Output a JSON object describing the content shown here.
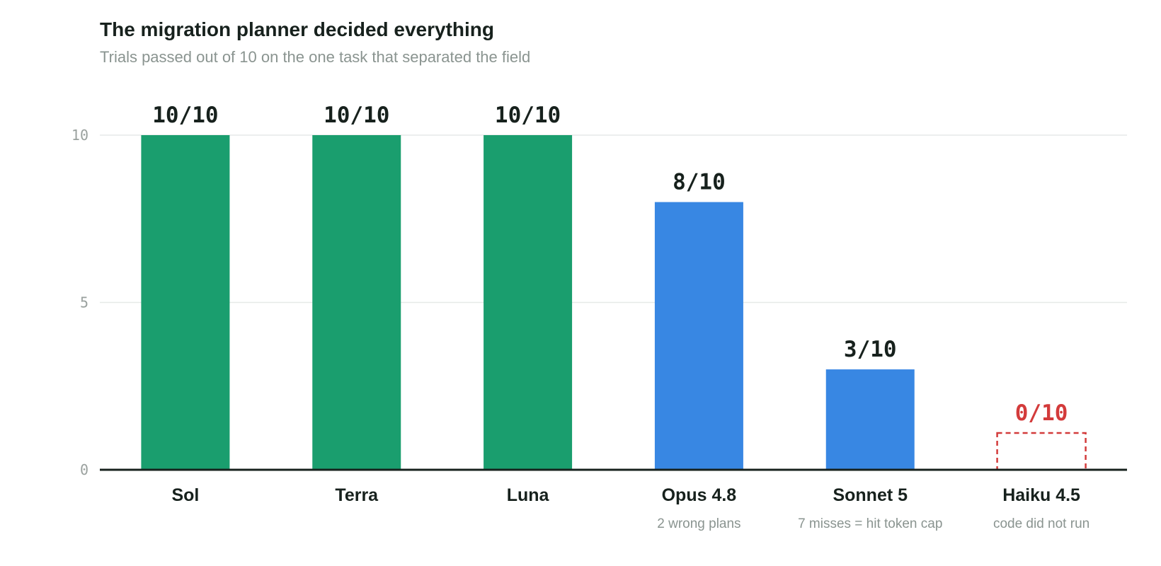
{
  "chart_data": {
    "type": "bar",
    "title": "The migration planner decided everything",
    "subtitle": "Trials passed out of 10 on the one task that separated the field",
    "ylim": [
      0,
      10
    ],
    "yticks": [
      0,
      5,
      10
    ],
    "grid": true,
    "categories": [
      "Sol",
      "Terra",
      "Luna",
      "Opus 4.8",
      "Sonnet 5",
      "Haiku 4.5"
    ],
    "values": [
      10,
      10,
      10,
      8,
      3,
      0
    ],
    "value_labels": [
      "10/10",
      "10/10",
      "10/10",
      "8/10",
      "3/10",
      "0/10"
    ],
    "notes": [
      "",
      "",
      "",
      "2 wrong plans",
      "7 misses = hit token cap",
      "code did not run"
    ],
    "colors": [
      "#1a9e6e",
      "#1a9e6e",
      "#1a9e6e",
      "#3887e3",
      "#3887e3",
      "#d33b3b"
    ],
    "failed_indices": [
      5
    ]
  }
}
